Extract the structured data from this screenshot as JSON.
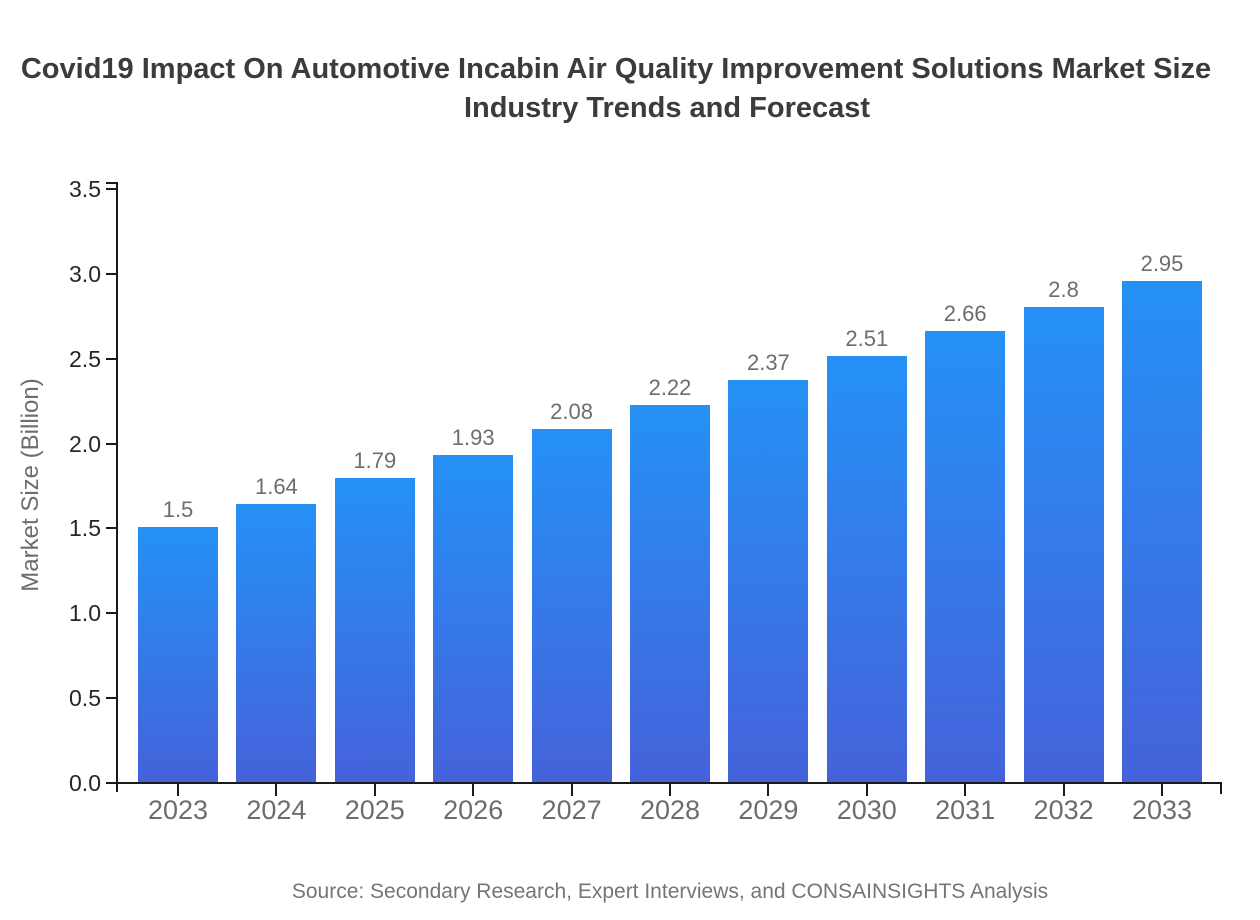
{
  "title": {
    "line1": "Covid19 Impact On Automotive Incabin Air Quality Improvement Solutions Market Size",
    "line2": "Industry Trends and Forecast"
  },
  "source": {
    "text": "Source: Secondary Research, Expert Interviews, and CONSAINSIGHTS Analysis"
  },
  "chart_data": {
    "type": "bar",
    "title": "Covid19 Impact On Automotive Incabin Air Quality Improvement Solutions Market Size Industry Trends and Forecast",
    "categories": [
      "2023",
      "2024",
      "2025",
      "2026",
      "2027",
      "2028",
      "2029",
      "2030",
      "2031",
      "2032",
      "2033"
    ],
    "values": [
      1.5,
      1.64,
      1.79,
      1.93,
      2.08,
      2.22,
      2.37,
      2.51,
      2.66,
      2.8,
      2.95
    ],
    "value_labels": [
      "1.5",
      "1.64",
      "1.79",
      "1.93",
      "2.08",
      "2.22",
      "2.37",
      "2.51",
      "2.66",
      "2.8",
      "2.95"
    ],
    "xlabel": "",
    "ylabel": "Market Size (Billion)",
    "ylim": [
      0,
      3.5
    ],
    "ytick_labels": [
      "0.0",
      "0.5",
      "1.0",
      "1.5",
      "2.0",
      "2.5",
      "3.0",
      "3.5"
    ],
    "grid": false,
    "legend": "none",
    "colors": {
      "bar_gradient_top": "#2591f5",
      "bar_gradient_bottom": "#4562da",
      "axis": "#1a1a1a",
      "y_tick_label": "#262626",
      "x_tick_label": "#6d6d6d",
      "value_label": "#6d6d6d",
      "title": "#3b3b3b",
      "source": "#757575"
    }
  }
}
